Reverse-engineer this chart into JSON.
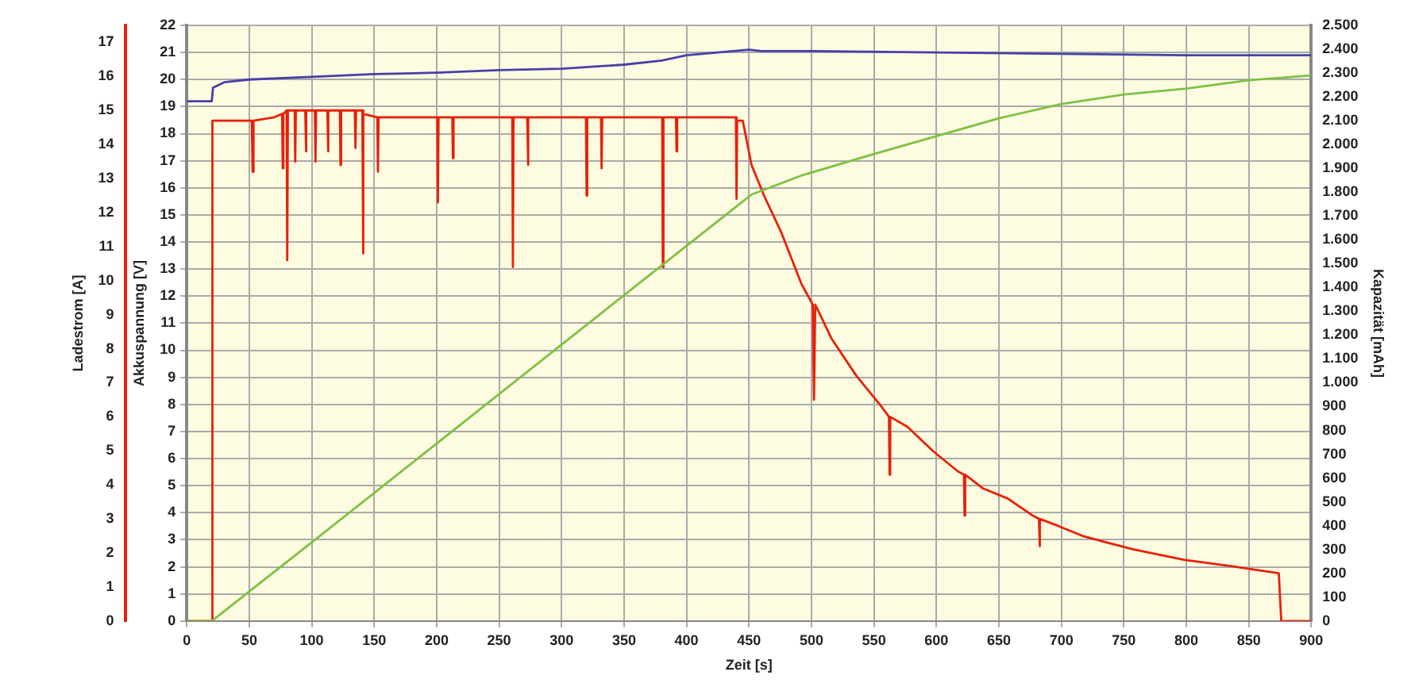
{
  "chart_data": {
    "type": "line",
    "xlabel": "Zeit [s]",
    "ylabel": "Akkuspannung [V]",
    "y2label": "Kapazität [mAh]",
    "y3label": "Ladestrom [A]",
    "xlim": [
      0,
      900
    ],
    "xticks": [
      0,
      50,
      100,
      150,
      200,
      250,
      300,
      350,
      400,
      450,
      500,
      550,
      600,
      650,
      700,
      750,
      800,
      850,
      900
    ],
    "ylim": [
      0,
      22
    ],
    "yticks": [
      0,
      1,
      2,
      3,
      4,
      5,
      6,
      7,
      8,
      9,
      10,
      11,
      12,
      13,
      14,
      15,
      16,
      17,
      18,
      19,
      20,
      21,
      22
    ],
    "y2lim": [
      0,
      2500
    ],
    "y2ticks": [
      0,
      100,
      200,
      300,
      400,
      500,
      600,
      700,
      800,
      900,
      {
        "value": 1000,
        "label": "1.000"
      },
      {
        "value": 1100,
        "label": "1.100"
      },
      {
        "value": 1200,
        "label": "1.200"
      },
      {
        "value": 1300,
        "label": "1.300"
      },
      {
        "value": 1400,
        "label": "1.400"
      },
      {
        "value": 1500,
        "label": "1.500"
      },
      {
        "value": 1600,
        "label": "1.600"
      },
      {
        "value": 1700,
        "label": "1.700"
      },
      {
        "value": 1800,
        "label": "1.800"
      },
      {
        "value": 1900,
        "label": "1.900"
      },
      {
        "value": 2000,
        "label": "2.000"
      },
      {
        "value": 2100,
        "label": "2.100"
      },
      {
        "value": 2200,
        "label": "2.200"
      },
      {
        "value": 2300,
        "label": "2.300"
      },
      {
        "value": 2400,
        "label": "2.400"
      },
      {
        "value": 2500,
        "label": "2.500"
      }
    ],
    "y3lim": [
      0,
      17.5
    ],
    "y3ticks": [
      0,
      1,
      2,
      3,
      4,
      5,
      6,
      7,
      8,
      9,
      10,
      11,
      12,
      13,
      14,
      15,
      16,
      17
    ],
    "grid": true,
    "legend": false,
    "marker": "none",
    "line_style": "solid",
    "series": [
      {
        "color": "#4a3fa8",
        "axis": "y",
        "x": [
          0,
          20,
          21,
          30,
          50,
          100,
          150,
          200,
          250,
          300,
          350,
          380,
          400,
          450,
          460,
          500,
          600,
          700,
          800,
          900
        ],
        "values": [
          19.2,
          19.2,
          19.7,
          19.9,
          20.0,
          20.1,
          20.2,
          20.25,
          20.35,
          20.4,
          20.55,
          20.7,
          20.9,
          21.1,
          21.05,
          21.05,
          21.0,
          20.95,
          20.9,
          20.9
        ]
      },
      {
        "color": "#7cc242",
        "axis": "y2",
        "x": [
          0,
          20,
          100,
          200,
          300,
          400,
          452,
          492,
          550,
          600,
          650,
          700,
          750,
          800,
          850,
          900
        ],
        "values": [
          0,
          0,
          330,
          745,
          1160,
          1575,
          1790,
          1870,
          1960,
          2035,
          2110,
          2170,
          2210,
          2235,
          2270,
          2290
        ]
      },
      {
        "color": "#e8200a",
        "axis": "y3",
        "x": [
          0,
          20,
          20.5,
          52,
          52.7,
          53.4,
          70,
          76.3,
          76.8,
          77.3,
          79.9,
          80.4,
          80.9,
          86.3,
          86.8,
          87.3,
          94.8,
          95.3,
          95.8,
          102.5,
          103,
          103.5,
          112.5,
          113,
          113.5,
          122.5,
          123,
          123.5,
          134.5,
          135,
          135.5,
          140.5,
          141,
          141.5,
          152.5,
          153,
          153.5,
          200.5,
          201,
          201.5,
          212.5,
          213,
          213.5,
          260.5,
          261,
          261.5,
          272.5,
          273,
          273.5,
          319.5,
          320,
          320.5,
          331.5,
          332,
          332.5,
          380.5,
          381,
          381.5,
          391.5,
          392,
          392.5,
          439.5,
          440,
          440.5,
          445,
          452,
          462,
          476,
          492,
          501,
          502,
          503,
          516,
          536,
          556,
          562,
          562.5,
          563,
          577,
          597,
          617,
          622,
          622.5,
          623,
          637,
          657,
          677,
          682,
          682.5,
          683,
          697,
          717,
          737,
          758,
          798,
          838,
          874,
          876,
          900
        ],
        "values": [
          0,
          0,
          14.7,
          14.7,
          13.2,
          14.7,
          14.8,
          14.9,
          13.3,
          14.9,
          15.0,
          10.6,
          15.0,
          15.0,
          13.5,
          15.0,
          15.0,
          13.8,
          15.0,
          15.0,
          13.5,
          15.0,
          15.0,
          13.8,
          15.0,
          15.0,
          13.4,
          15.0,
          15.0,
          13.9,
          15.0,
          15.0,
          10.8,
          14.9,
          14.8,
          13.2,
          14.8,
          14.8,
          12.3,
          14.8,
          14.8,
          13.6,
          14.8,
          14.8,
          10.4,
          14.8,
          14.8,
          13.4,
          14.8,
          14.8,
          12.5,
          14.8,
          14.8,
          13.3,
          14.8,
          14.8,
          10.4,
          14.8,
          14.8,
          13.8,
          14.8,
          14.8,
          12.4,
          14.7,
          14.7,
          13.4,
          12.5,
          11.4,
          9.9,
          9.3,
          6.5,
          9.3,
          8.3,
          7.2,
          6.3,
          6.0,
          4.3,
          6.0,
          5.7,
          5.0,
          4.4,
          4.3,
          3.1,
          4.3,
          3.9,
          3.6,
          3.1,
          3.0,
          2.2,
          3.0,
          2.8,
          2.5,
          2.3,
          2.1,
          1.8,
          1.6,
          1.4,
          0,
          0
        ]
      }
    ]
  }
}
